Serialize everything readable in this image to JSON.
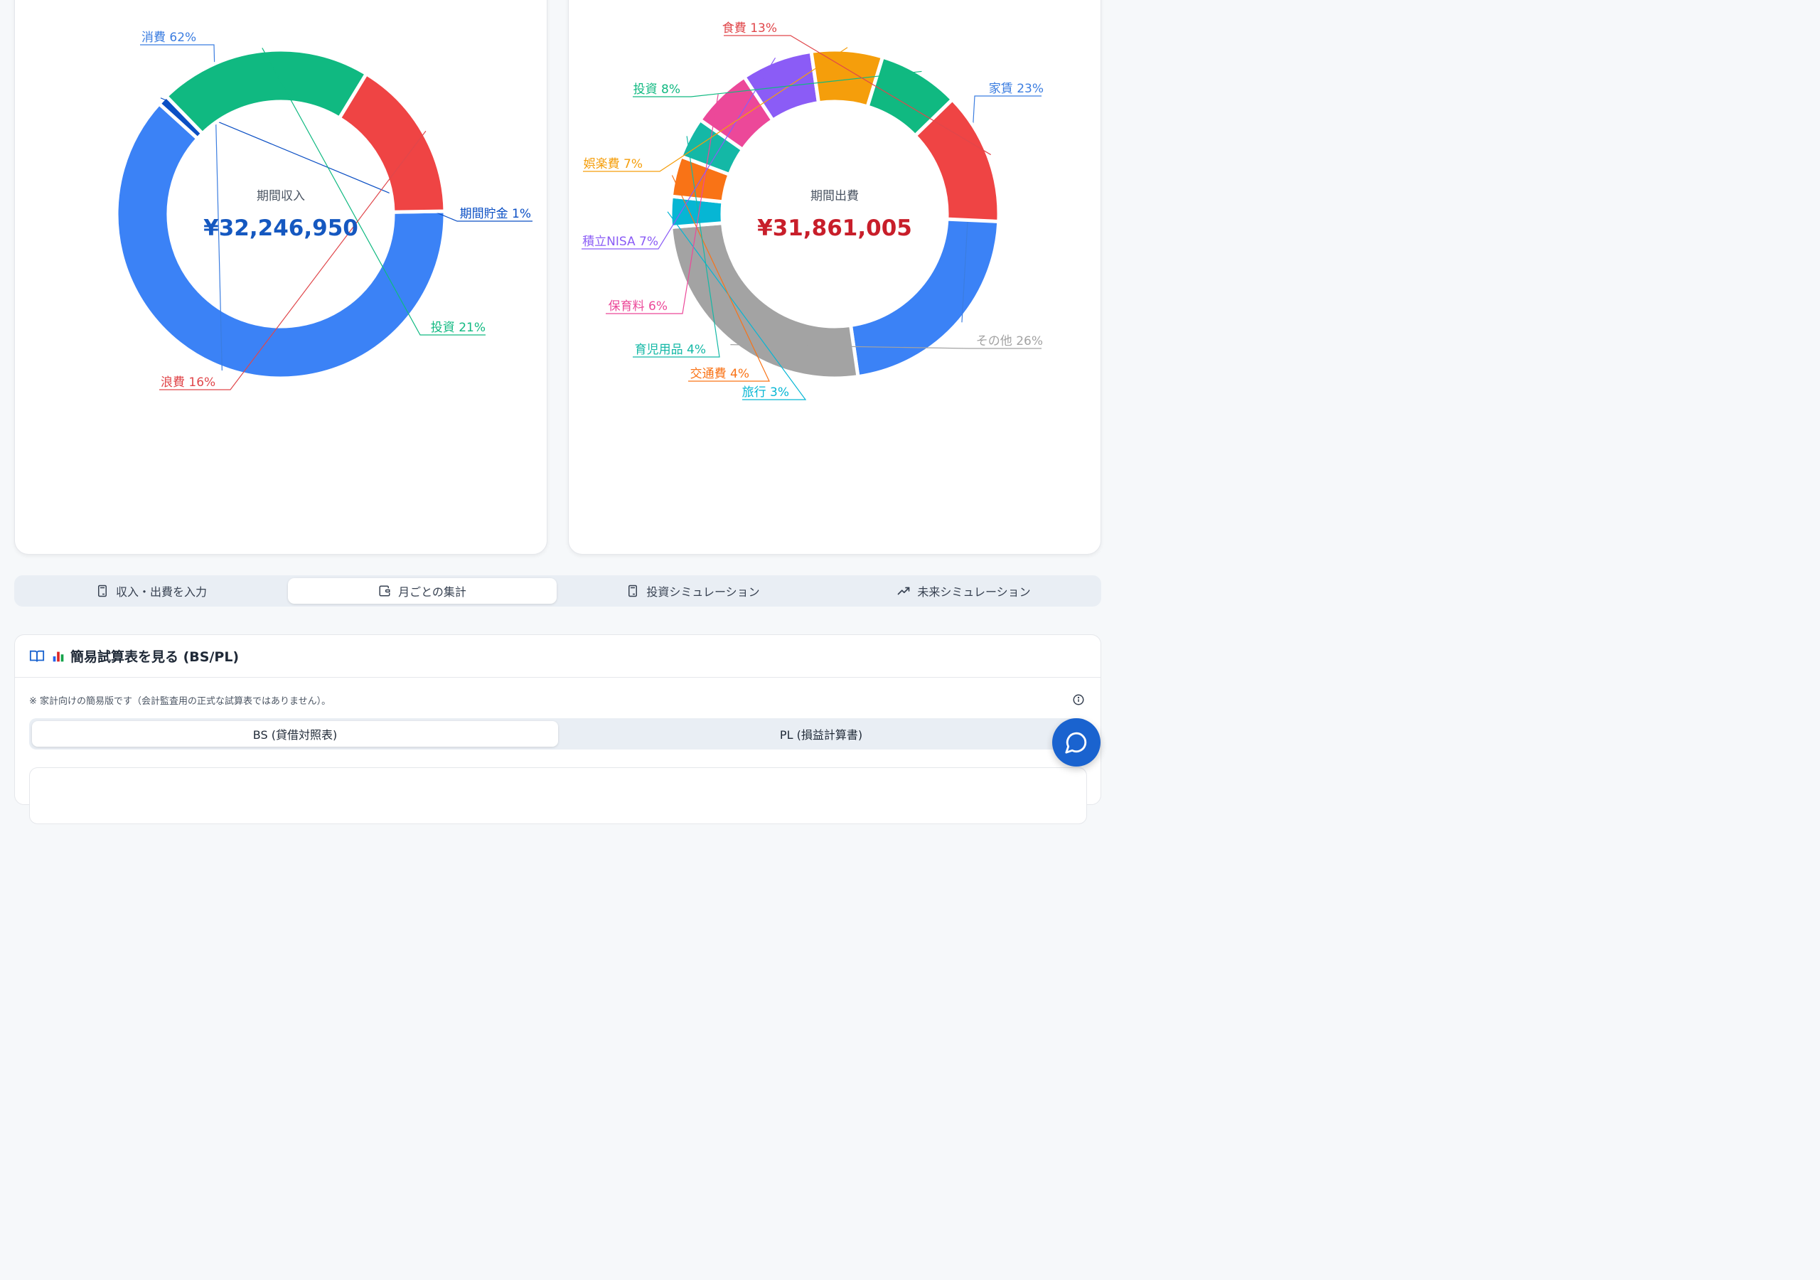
{
  "income_chart": {
    "center_label": "期間収入",
    "center_value": "¥32,246,950",
    "center_color": "#1558c0",
    "segments": [
      {
        "label": "消費 62%",
        "pct": 62,
        "color": "#3b82f6",
        "text_color": "#3b7de0"
      },
      {
        "label": "期間貯金 1%",
        "pct": 1,
        "color": "#0b4fc4",
        "text_color": "#0b4fc4"
      },
      {
        "label": "投資 21%",
        "pct": 21,
        "color": "#10b981",
        "text_color": "#10b981"
      },
      {
        "label": "浪費 16%",
        "pct": 16,
        "color": "#ef4444",
        "text_color": "#e0474b"
      }
    ]
  },
  "expense_chart": {
    "center_label": "期間出費",
    "center_value": "¥31,861,005",
    "center_color": "#c81e2a",
    "segments": [
      {
        "label": "家賃 23%",
        "pct": 23,
        "color": "#3b82f6",
        "text_color": "#3b7de0"
      },
      {
        "label": "その他 26%",
        "pct": 26,
        "color": "#a3a3a3",
        "text_color": "#a3a3a3"
      },
      {
        "label": "旅行 3%",
        "pct": 3,
        "color": "#06b6d4",
        "text_color": "#06b6d4"
      },
      {
        "label": "交通費 4%",
        "pct": 4,
        "color": "#f97316",
        "text_color": "#f97316"
      },
      {
        "label": "育児用品 4%",
        "pct": 4,
        "color": "#14b8a6",
        "text_color": "#14b8a6"
      },
      {
        "label": "保育料 6%",
        "pct": 6,
        "color": "#ec4899",
        "text_color": "#ec4899"
      },
      {
        "label": "積立NISA 7%",
        "pct": 7,
        "color": "#8b5cf6",
        "text_color": "#8b5cf6"
      },
      {
        "label": "娯楽費 7%",
        "pct": 7,
        "color": "#f59e0b",
        "text_color": "#f59e0b"
      },
      {
        "label": "投資 8%",
        "pct": 8,
        "color": "#10b981",
        "text_color": "#10b981"
      },
      {
        "label": "食費 13%",
        "pct": 13,
        "color": "#ef4444",
        "text_color": "#e0474b"
      }
    ]
  },
  "tabs": [
    {
      "label": "収入・出費を入力",
      "icon": "calculator-icon",
      "active": false
    },
    {
      "label": "月ごとの集計",
      "icon": "wallet-icon",
      "active": true
    },
    {
      "label": "投資シミュレーション",
      "icon": "calculator-icon",
      "active": false
    },
    {
      "label": "未来シミュレーション",
      "icon": "trending-up-icon",
      "active": false
    }
  ],
  "trial_balance": {
    "title": "簡易試算表を見る (BS/PL)",
    "note": "※ 家計向けの簡易版です（会計監査用の正式な試算表ではありません）。",
    "subtabs": [
      {
        "label": "BS (貸借対照表)",
        "active": true
      },
      {
        "label": "PL (損益計算書)",
        "active": false
      }
    ]
  }
}
